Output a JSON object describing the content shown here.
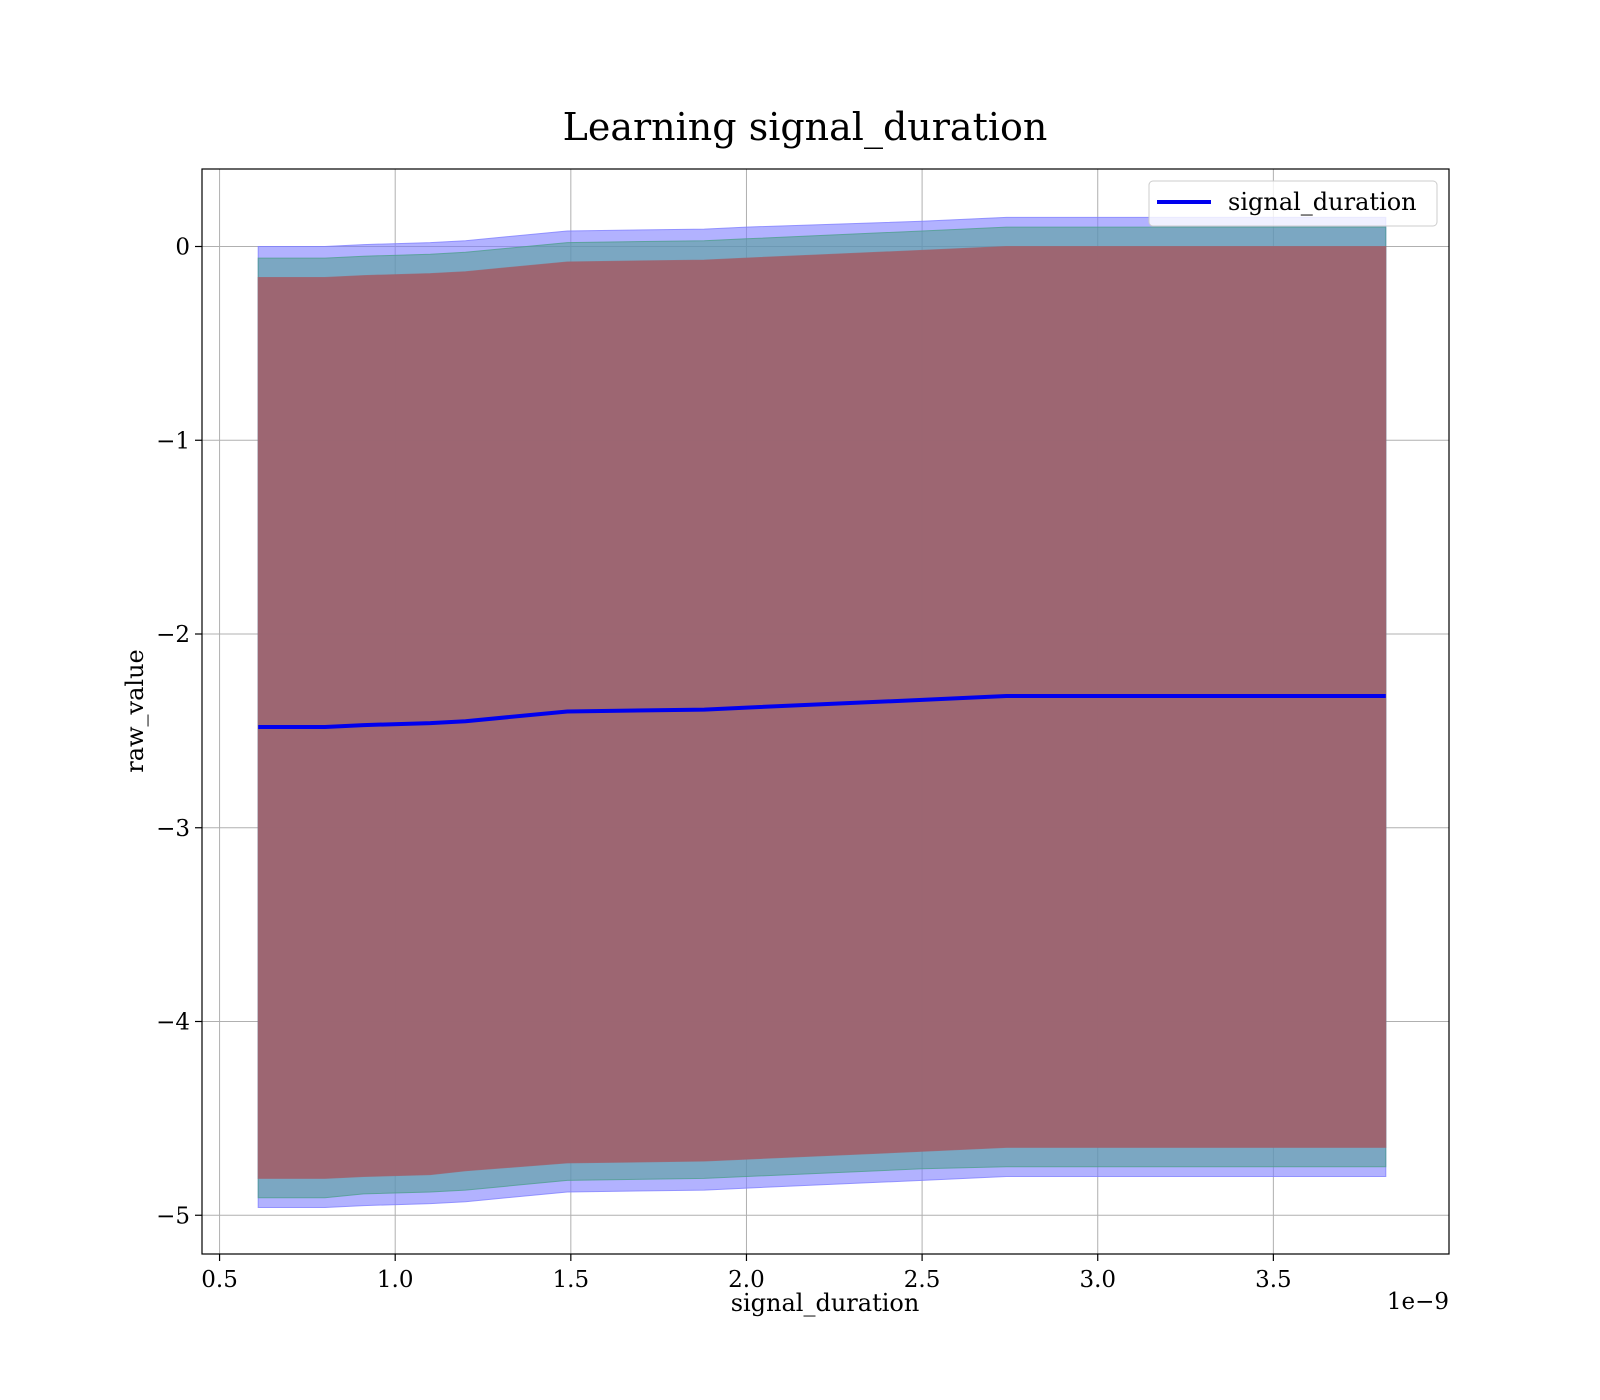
{
  "chart_data": {
    "type": "area",
    "title": "Learning signal_duration",
    "xlabel": "signal_duration",
    "ylabel": "raw_value",
    "x_offset_label": "1e−9",
    "xlim": [
      0.45,
      4.0
    ],
    "ylim": [
      -5.2,
      0.4
    ],
    "x_ticks": [
      0.5,
      1.0,
      1.5,
      2.0,
      2.5,
      3.0,
      3.5
    ],
    "x_tick_labels": [
      "0.5",
      "1.0",
      "1.5",
      "2.0",
      "2.5",
      "3.0",
      "3.5"
    ],
    "y_ticks": [
      0,
      -1,
      -2,
      -3,
      -4,
      -5
    ],
    "y_tick_labels": [
      "0",
      "−1",
      "−2",
      "−3",
      "−4",
      "−5"
    ],
    "grid": true,
    "legend_position": "top-right",
    "x": [
      0.61,
      0.8,
      0.91,
      1.1,
      1.2,
      1.49,
      1.88,
      2.0,
      2.5,
      2.74,
      3.0,
      3.82
    ],
    "series": [
      {
        "name": "signal_duration",
        "color": "#0000ee",
        "values": [
          -2.48,
          -2.48,
          -2.47,
          -2.46,
          -2.45,
          -2.4,
          -2.39,
          -2.38,
          -2.34,
          -2.32,
          -2.32,
          -2.32
        ]
      }
    ],
    "bands": [
      {
        "color": "#7f7fff",
        "opacity": 0.6,
        "upper": [
          0.0,
          0.0,
          0.01,
          0.02,
          0.03,
          0.08,
          0.09,
          0.1,
          0.13,
          0.15,
          0.15,
          0.15
        ],
        "lower": [
          -4.96,
          -4.96,
          -4.95,
          -4.94,
          -4.93,
          -4.88,
          -4.87,
          -4.86,
          -4.82,
          -4.8,
          -4.8,
          -4.8
        ]
      },
      {
        "color": "#4f9f8f",
        "opacity": 0.55,
        "upper": [
          -0.06,
          -0.06,
          -0.05,
          -0.04,
          -0.03,
          0.02,
          0.03,
          0.04,
          0.08,
          0.1,
          0.1,
          0.1
        ],
        "lower": [
          -4.91,
          -4.91,
          -4.89,
          -4.88,
          -4.87,
          -4.82,
          -4.81,
          -4.8,
          -4.76,
          -4.75,
          -4.75,
          -4.75
        ]
      },
      {
        "color": "#9e6470",
        "opacity": 0.97,
        "upper": [
          -0.16,
          -0.16,
          -0.15,
          -0.14,
          -0.13,
          -0.08,
          -0.07,
          -0.06,
          -0.02,
          0.0,
          0.0,
          0.0
        ],
        "lower": [
          -4.81,
          -4.81,
          -4.8,
          -4.79,
          -4.77,
          -4.73,
          -4.72,
          -4.71,
          -4.67,
          -4.65,
          -4.65,
          -4.65
        ]
      }
    ]
  }
}
